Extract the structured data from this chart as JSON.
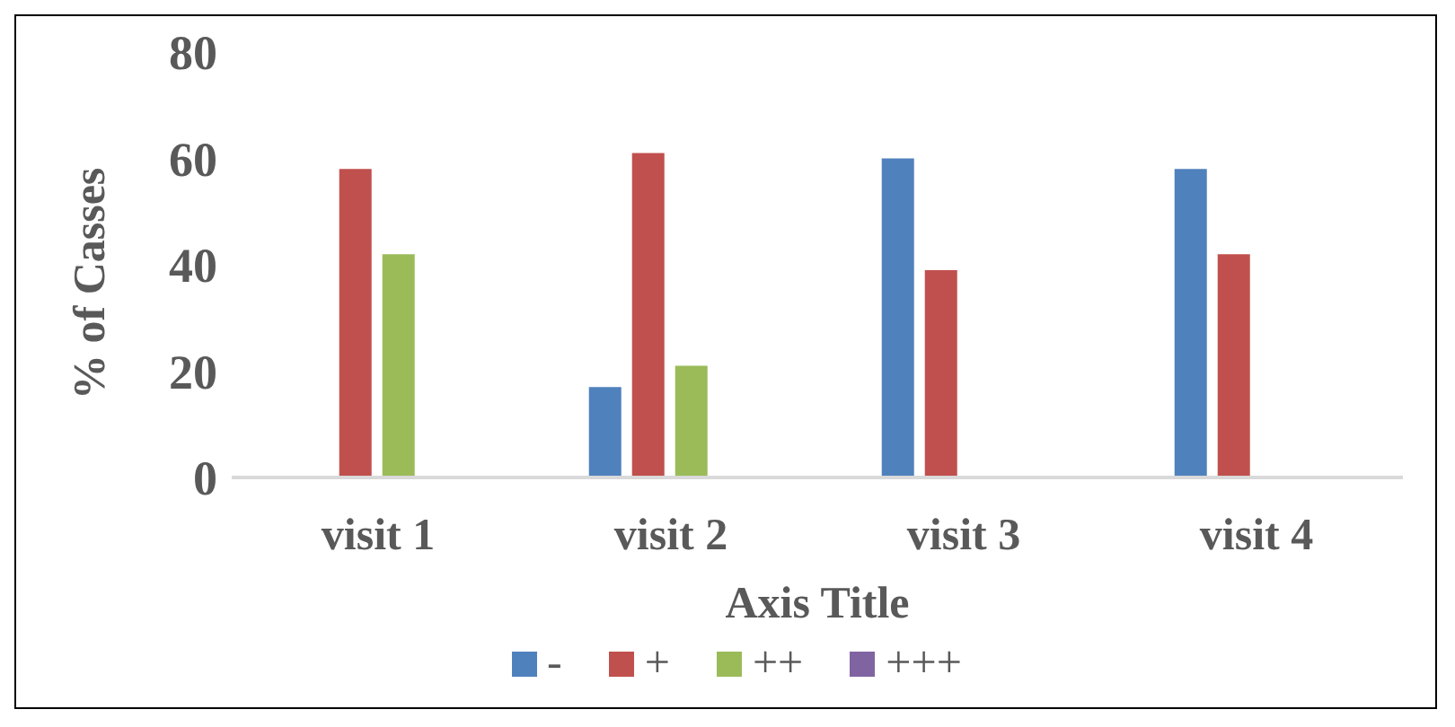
{
  "chart_data": {
    "type": "bar",
    "xlabel": "Axis Title",
    "ylabel": "% of Casses",
    "categories": [
      "visit 1",
      "visit 2",
      "visit 3",
      "visit 4"
    ],
    "series": [
      {
        "name": "-",
        "color": "#4f81bd",
        "values": [
          null,
          17,
          60,
          58
        ]
      },
      {
        "name": "+",
        "color": "#c0504d",
        "values": [
          58,
          61,
          39,
          42
        ]
      },
      {
        "name": "++",
        "color": "#9bbb59",
        "values": [
          42,
          21,
          null,
          null
        ]
      },
      {
        "name": "+++",
        "color": "#8064a2",
        "values": [
          null,
          null,
          null,
          null
        ]
      }
    ],
    "ylim": [
      0,
      80
    ],
    "yticks": [
      0,
      20,
      40,
      60,
      80
    ],
    "grid": false,
    "legend": "bottom"
  }
}
